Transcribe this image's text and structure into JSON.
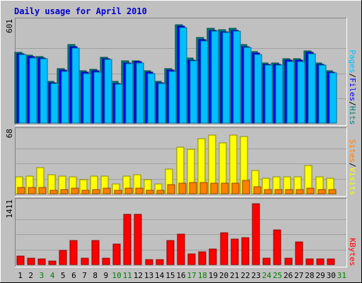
{
  "chart_data": {
    "type": "bar",
    "title": "Daily usage for April 2010",
    "background": "#c0c0c0",
    "days": [
      1,
      2,
      3,
      4,
      5,
      6,
      7,
      8,
      9,
      10,
      11,
      12,
      13,
      14,
      15,
      16,
      17,
      18,
      19,
      20,
      21,
      22,
      23,
      24,
      25,
      26,
      27,
      28,
      29,
      30,
      31
    ],
    "weekend_days": [
      3,
      4,
      10,
      11,
      17,
      18,
      24,
      25,
      31
    ],
    "weekday_color": "#000000",
    "weekend_color": "#008000",
    "panels": [
      {
        "id": "hits_files_pages",
        "ymax_label": "601",
        "ymax": 601,
        "legend": [
          {
            "label": "Pages",
            "color": "#00c0ff"
          },
          {
            "label": "/",
            "color": "#000000"
          },
          {
            "label": "Files",
            "color": "#0000ff"
          },
          {
            "label": "/",
            "color": "#000000"
          },
          {
            "label": "Hits",
            "color": "#008080"
          }
        ],
        "series": [
          {
            "name": "Hits",
            "color": "#008080",
            "values": [
              426,
              410,
              399,
              250,
              328,
              471,
              315,
              325,
              397,
              250,
              375,
              375,
              315,
              250,
              328,
              592,
              392,
              514,
              570,
              562,
              570,
              472,
              430,
              364,
              364,
              386,
              386,
              436,
              364,
              317,
              null
            ]
          },
          {
            "name": "Files",
            "color": "#0000ff",
            "values": [
              418,
              399,
              392,
              241,
              318,
              460,
              305,
              315,
              390,
              240,
              362,
              370,
              305,
              241,
              318,
              582,
              380,
              502,
              560,
              550,
              560,
              462,
              420,
              355,
              355,
              378,
              378,
              425,
              355,
              307,
              null
            ]
          },
          {
            "name": "Pages",
            "color": "#00c0ff",
            "values": [
              412,
              392,
              387,
              238,
              311,
              453,
              299,
              309,
              385,
              235,
              356,
              364,
              300,
              238,
              311,
              577,
              373,
              496,
              554,
              544,
              553,
              457,
              415,
              350,
              350,
              372,
              372,
              419,
              349,
              301,
              null
            ]
          }
        ]
      },
      {
        "id": "visits_sites",
        "ymax_label": "68",
        "ymax": 68,
        "legend": [
          {
            "label": "Sites",
            "color": "#ff8000"
          },
          {
            "label": "/",
            "color": "#000000"
          },
          {
            "label": "Visits",
            "color": "#ffff00"
          }
        ],
        "series": [
          {
            "name": "Visits",
            "color": "#ffff00",
            "values": [
              19,
              20,
              29,
              21,
              20,
              19,
              16,
              20,
              20,
              11,
              20,
              21,
              16,
              11,
              28,
              52,
              50,
              62,
              66,
              57,
              66,
              64,
              26,
              17,
              19,
              19,
              19,
              32,
              19,
              17,
              null
            ]
          },
          {
            "name": "Sites",
            "color": "#ff8000",
            "values": [
              7,
              7,
              7,
              4,
              5,
              6,
              4,
              5,
              6,
              4,
              6,
              6,
              4,
              4,
              10,
              12,
              13,
              13,
              12,
              12,
              12,
              15,
              8,
              5,
              5,
              5,
              5,
              6,
              5,
              5,
              null
            ]
          }
        ]
      },
      {
        "id": "kbytes",
        "ymax_label": "1411",
        "ymax": 1411,
        "legend": [
          {
            "label": "KBytes",
            "color": "#ff0000"
          }
        ],
        "series": [
          {
            "name": "KBytes",
            "color": "#ff0000",
            "values": [
              200,
              150,
              130,
              90,
              325,
              560,
              150,
              560,
              150,
              480,
              1170,
              1170,
              110,
              110,
              555,
              700,
              240,
              290,
              355,
              735,
              590,
              630,
              1411,
              150,
              810,
              150,
              525,
              130,
              130,
              130,
              null
            ]
          }
        ]
      }
    ]
  }
}
